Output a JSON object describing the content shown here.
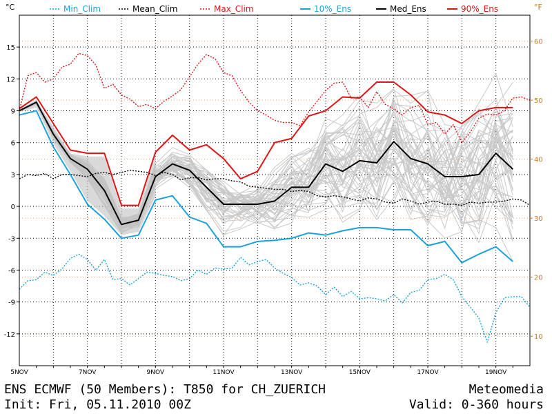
{
  "footer": {
    "line1_left": "ENS ECMWF (50 Members): T850 for CH_ZUERICH",
    "line2_left": "Init: Fri, 05.11.2010 00Z",
    "line1_right": "Meteomedia",
    "line2_right": "Valid: 0-360 hours"
  },
  "chart_data": {
    "type": "line",
    "ylabel_left": "°C",
    "ylabel_right": "°F",
    "xlim": [
      0,
      360
    ],
    "ylim": [
      -15,
      18
    ],
    "x_tick_labels": [
      {
        "x": 0,
        "label": "5NOV"
      },
      {
        "x": 48,
        "label": "7NOV"
      },
      {
        "x": 96,
        "label": "9NOV"
      },
      {
        "x": 144,
        "label": "11NOV"
      },
      {
        "x": 192,
        "label": "13NOV"
      },
      {
        "x": 240,
        "label": "15NOV"
      },
      {
        "x": 288,
        "label": "17NOV"
      },
      {
        "x": 336,
        "label": "19NOV"
      }
    ],
    "y_ticks_left": [
      -12,
      -9,
      -6,
      -3,
      0,
      3,
      6,
      9,
      12,
      15
    ],
    "y_ticks_right": [
      10,
      20,
      30,
      40,
      50,
      60
    ],
    "grid": true,
    "legend_position": "top",
    "series": [
      {
        "name": "Min_Clim",
        "color": "#1aa0dc",
        "style": "dotted",
        "x": [
          0,
          6,
          12,
          18,
          24,
          30,
          36,
          42,
          48,
          54,
          60,
          66,
          72,
          78,
          84,
          90,
          96,
          102,
          108,
          114,
          120,
          126,
          132,
          138,
          144,
          150,
          156,
          162,
          168,
          174,
          180,
          186,
          192,
          198,
          204,
          210,
          216,
          222,
          228,
          234,
          240,
          246,
          252,
          258,
          264,
          270,
          276,
          282,
          288,
          294,
          300,
          306,
          312,
          318,
          324,
          330,
          336,
          342,
          348,
          354,
          360
        ],
        "values": [
          -7.8,
          -7.0,
          -6.9,
          -6.2,
          -6.5,
          -5.9,
          -4.9,
          -4.5,
          -5.0,
          -6.0,
          -5.0,
          -6.9,
          -6.8,
          -7.4,
          -6.8,
          -6.2,
          -6.3,
          -6.5,
          -6.6,
          -7.0,
          -6.8,
          -6.0,
          -6.4,
          -5.8,
          -5.9,
          -5.8,
          -4.8,
          -5.5,
          -5.2,
          -5.0,
          -5.8,
          -6.3,
          -6.7,
          -7.4,
          -7.2,
          -7.5,
          -8.3,
          -7.6,
          -8.5,
          -8.0,
          -8.7,
          -8.6,
          -8.7,
          -8.9,
          -8.3,
          -9.1,
          -8.1,
          -7.9,
          -6.9,
          -6.8,
          -6.4,
          -6.9,
          -8.5,
          -9.5,
          -10.5,
          -12.8,
          -10.0,
          -8.6,
          -8.5,
          -8.5,
          -9.5
        ]
      },
      {
        "name": "Mean_Clim",
        "color": "#000000",
        "style": "dotted",
        "x": [
          0,
          6,
          12,
          18,
          24,
          30,
          36,
          42,
          48,
          54,
          60,
          66,
          72,
          78,
          84,
          90,
          96,
          102,
          108,
          114,
          120,
          126,
          132,
          138,
          144,
          150,
          156,
          162,
          168,
          174,
          180,
          186,
          192,
          198,
          204,
          210,
          216,
          222,
          228,
          234,
          240,
          246,
          252,
          258,
          264,
          270,
          276,
          282,
          288,
          294,
          300,
          306,
          312,
          318,
          324,
          330,
          336,
          342,
          348,
          354,
          360
        ],
        "values": [
          2.6,
          3.0,
          2.9,
          3.1,
          2.6,
          3.0,
          3.0,
          2.9,
          2.8,
          3.1,
          3.2,
          3.0,
          3.2,
          3.4,
          3.3,
          3.2,
          2.9,
          3.2,
          3.0,
          2.5,
          2.7,
          2.7,
          2.5,
          2.6,
          2.6,
          2.4,
          2.3,
          1.9,
          1.8,
          1.7,
          1.6,
          1.6,
          1.4,
          1.5,
          1.4,
          1.0,
          0.9,
          1.0,
          0.9,
          0.7,
          0.5,
          0.8,
          0.7,
          0.4,
          0.3,
          0.7,
          0.5,
          0.2,
          0.4,
          0.5,
          0.2,
          0.2,
          0.1,
          0.4,
          0.3,
          0.4,
          0.4,
          0.5,
          0.7,
          0.6,
          0.1
        ]
      },
      {
        "name": "Max_Clim",
        "color": "#dc1414",
        "style": "dotted",
        "x": [
          0,
          6,
          12,
          18,
          24,
          30,
          36,
          42,
          48,
          54,
          60,
          66,
          72,
          78,
          84,
          90,
          96,
          102,
          108,
          114,
          120,
          126,
          132,
          138,
          144,
          150,
          156,
          162,
          168,
          174,
          180,
          186,
          192,
          198,
          204,
          210,
          216,
          222,
          228,
          234,
          240,
          246,
          252,
          258,
          264,
          270,
          276,
          282,
          288,
          294,
          300,
          306,
          312,
          318,
          324,
          330,
          336,
          342,
          348,
          354,
          360
        ],
        "values": [
          9.0,
          12.3,
          12.6,
          11.7,
          12.0,
          13.1,
          13.4,
          14.4,
          14.2,
          13.3,
          11.1,
          11.5,
          10.5,
          10.1,
          9.4,
          9.6,
          9.2,
          9.9,
          10.4,
          11.0,
          12.2,
          13.4,
          14.3,
          13.9,
          12.6,
          12.3,
          10.9,
          9.8,
          9.0,
          8.6,
          8.1,
          7.9,
          7.9,
          7.6,
          8.9,
          9.9,
          10.9,
          11.6,
          11.7,
          10.2,
          10.3,
          9.3,
          10.8,
          9.6,
          9.2,
          8.6,
          9.3,
          9.5,
          7.7,
          7.9,
          6.8,
          7.7,
          6.0,
          7.0,
          8.3,
          8.7,
          8.6,
          9.0,
          10.2,
          10.3,
          10.0
        ]
      },
      {
        "name": "10%_Ens",
        "color": "#1aa0dc",
        "style": "solid",
        "x": [
          0,
          12,
          24,
          36,
          48,
          60,
          72,
          84,
          96,
          108,
          120,
          132,
          144,
          156,
          168,
          180,
          192,
          204,
          216,
          228,
          240,
          252,
          264,
          276,
          288,
          300,
          312,
          324,
          336,
          348
        ],
        "values": [
          8.6,
          9.0,
          5.6,
          3.0,
          0.2,
          -1.2,
          -3.0,
          -2.7,
          0.6,
          1.0,
          -1.0,
          -1.6,
          -3.8,
          -3.8,
          -3.3,
          -3.2,
          -3.0,
          -2.5,
          -2.7,
          -2.3,
          -2.0,
          -2.0,
          -2.2,
          -2.2,
          -3.7,
          -3.3,
          -5.3,
          -4.5,
          -3.8,
          -5.2
        ]
      },
      {
        "name": "Med_Ens",
        "color": "#000000",
        "style": "solid",
        "x": [
          0,
          12,
          24,
          36,
          48,
          60,
          72,
          84,
          96,
          108,
          120,
          132,
          144,
          156,
          168,
          180,
          192,
          204,
          216,
          228,
          240,
          252,
          264,
          276,
          288,
          300,
          312,
          324,
          336,
          348
        ],
        "values": [
          9.0,
          9.8,
          6.8,
          4.5,
          3.5,
          1.5,
          -1.7,
          -1.3,
          2.8,
          4.0,
          3.4,
          1.8,
          0.2,
          0.2,
          0.2,
          0.5,
          1.8,
          1.8,
          4.0,
          3.3,
          4.3,
          4.1,
          6.1,
          4.5,
          4.0,
          2.8,
          2.8,
          3.0,
          5.0,
          3.5
        ]
      },
      {
        "name": "90%_Ens",
        "color": "#dc1414",
        "style": "solid",
        "x": [
          0,
          12,
          24,
          36,
          48,
          60,
          72,
          84,
          96,
          108,
          120,
          132,
          144,
          156,
          168,
          180,
          192,
          204,
          216,
          228,
          240,
          252,
          264,
          276,
          288,
          300,
          312,
          324,
          336,
          348
        ],
        "values": [
          9.2,
          10.3,
          7.8,
          5.3,
          5.0,
          5.0,
          0.1,
          0.1,
          5.1,
          6.7,
          5.3,
          5.8,
          4.5,
          2.6,
          3.3,
          6.0,
          6.4,
          8.5,
          9.0,
          10.3,
          10.2,
          11.7,
          11.7,
          10.5,
          8.9,
          8.6,
          7.8,
          9.0,
          9.3,
          9.3
        ]
      }
    ]
  }
}
